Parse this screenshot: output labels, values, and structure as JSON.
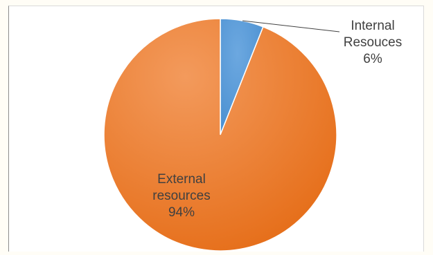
{
  "chart_data": {
    "type": "pie",
    "slices": [
      {
        "label_lines": [
          "Internal",
          "Resouces",
          "6%"
        ],
        "value": 6,
        "color": "#5b9bd5"
      },
      {
        "label_lines": [
          "External",
          "resources",
          "94%"
        ],
        "value": 94,
        "color": "#ed7d31"
      }
    ],
    "start_angle_deg": 0,
    "direction": "clockwise"
  }
}
